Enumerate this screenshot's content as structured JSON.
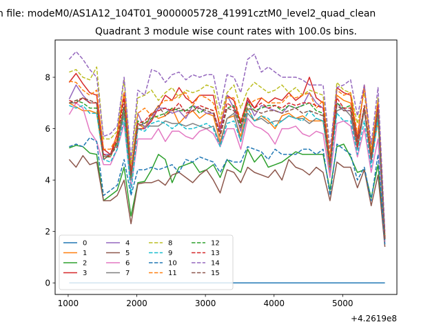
{
  "figure": {
    "suptitle": "n file: modeM0/AS1A12_104T01_9000005728_41991cztM0_level2_quad_clean",
    "title": "Quadrant 3 module wise count rates with 100.0s bins.",
    "offset_text": "+4.2619e8"
  },
  "chart_data": {
    "type": "line",
    "title": "Quadrant 3 module wise count rates with 100.0s bins.",
    "xlabel": "",
    "ylabel": "",
    "x_offset": "+4.2619e8",
    "xlim": [
      810,
      5790
    ],
    "ylim": [
      -0.45,
      9.45
    ],
    "xticks": [
      1000,
      2000,
      3000,
      4000,
      5000
    ],
    "yticks": [
      0,
      2,
      4,
      6,
      8
    ],
    "grid": false,
    "legend": {
      "placement": "lower-left",
      "columns": 4
    },
    "x": [
      1015,
      1115,
      1215,
      1315,
      1415,
      1515,
      1615,
      1715,
      1815,
      1915,
      2015,
      2115,
      2215,
      2315,
      2415,
      2515,
      2615,
      2715,
      2815,
      2915,
      3015,
      3115,
      3215,
      3315,
      3415,
      3515,
      3615,
      3715,
      3815,
      3915,
      4015,
      4115,
      4215,
      4315,
      4415,
      4515,
      4615,
      4715,
      4815,
      4915,
      5015,
      5115,
      5215,
      5315,
      5415,
      5515,
      5615
    ],
    "series": [
      {
        "name": "0",
        "color": "#1f77b4",
        "dash": "solid",
        "values": [
          0,
          0,
          0,
          0,
          0,
          0,
          0,
          0,
          0,
          0,
          0,
          0,
          0,
          0,
          0,
          0,
          0,
          0,
          0,
          0,
          0,
          0,
          0,
          0,
          0,
          0,
          0,
          0,
          0,
          0,
          0,
          0,
          0,
          0,
          0,
          0,
          0,
          0,
          0,
          0,
          0,
          0,
          0,
          0,
          0,
          0,
          0
        ]
      },
      {
        "name": "1",
        "color": "#ff7f0e",
        "dash": "solid",
        "values": [
          7.0,
          6.85,
          6.7,
          6.7,
          6.6,
          4.8,
          5.0,
          5.6,
          6.5,
          4.1,
          6.2,
          6.0,
          6.6,
          6.4,
          6.5,
          6.8,
          6.2,
          6.5,
          6.7,
          6.4,
          6.6,
          6.5,
          5.5,
          6.4,
          6.5,
          5.7,
          6.8,
          6.3,
          6.5,
          6.3,
          6.0,
          6.5,
          6.6,
          6.4,
          6.5,
          6.3,
          6.3,
          6.3,
          4.3,
          7.3,
          7.1,
          7.0,
          5.6,
          6.7,
          4.7,
          6.3,
          1.7
        ]
      },
      {
        "name": "2",
        "color": "#2ca02c",
        "dash": "solid",
        "values": [
          5.25,
          5.35,
          5.3,
          5.05,
          5.0,
          3.2,
          3.4,
          3.6,
          4.5,
          2.6,
          3.9,
          3.95,
          4.4,
          5.0,
          4.8,
          3.9,
          4.5,
          4.6,
          4.7,
          4.3,
          4.4,
          4.6,
          4.1,
          4.8,
          4.5,
          4.3,
          5.2,
          4.7,
          5.0,
          4.5,
          4.6,
          4.7,
          4.9,
          5.1,
          5.0,
          5.0,
          5.0,
          5.0,
          3.6,
          5.3,
          5.4,
          4.9,
          4.3,
          4.4,
          3.3,
          4.6,
          1.6
        ]
      },
      {
        "name": "3",
        "color": "#d62728",
        "dash": "solid",
        "values": [
          7.8,
          8.15,
          7.75,
          7.4,
          7.3,
          5.2,
          5.0,
          5.8,
          7.4,
          4.4,
          6.0,
          6.0,
          6.3,
          6.8,
          7.3,
          7.1,
          7.6,
          7.2,
          7.0,
          7.3,
          7.3,
          7.3,
          6.0,
          7.3,
          7.1,
          6.2,
          7.2,
          6.8,
          7.2,
          7.0,
          7.2,
          7.1,
          7.4,
          7.1,
          7.3,
          8.0,
          7.2,
          7.0,
          4.6,
          7.6,
          7.4,
          7.3,
          5.6,
          7.7,
          5.0,
          7.1,
          1.8
        ]
      },
      {
        "name": "4",
        "color": "#9467bd",
        "dash": "solid",
        "values": [
          7.15,
          7.7,
          7.3,
          7.0,
          7.0,
          5.0,
          5.0,
          5.4,
          6.8,
          4.2,
          6.6,
          6.0,
          6.4,
          6.8,
          6.8,
          6.6,
          6.7,
          6.4,
          6.9,
          6.8,
          6.6,
          6.6,
          5.9,
          7.3,
          6.8,
          5.9,
          7.1,
          6.5,
          6.9,
          6.8,
          6.7,
          6.6,
          6.9,
          6.8,
          6.9,
          7.4,
          7.0,
          6.8,
          4.5,
          7.0,
          6.7,
          6.7,
          5.2,
          6.8,
          4.7,
          6.8,
          1.7
        ]
      },
      {
        "name": "5",
        "color": "#8c564b",
        "dash": "solid",
        "values": [
          4.8,
          4.5,
          4.95,
          4.6,
          4.7,
          3.2,
          3.2,
          3.4,
          4.0,
          2.3,
          3.85,
          3.9,
          3.9,
          4.0,
          3.8,
          4.2,
          4.3,
          4.1,
          3.9,
          4.2,
          4.4,
          4.0,
          3.5,
          4.4,
          4.3,
          3.9,
          4.5,
          4.3,
          4.2,
          4.1,
          4.4,
          4.0,
          4.8,
          4.5,
          4.4,
          4.2,
          4.5,
          4.3,
          3.2,
          4.7,
          4.5,
          4.5,
          3.7,
          4.4,
          3.0,
          4.2,
          1.4
        ]
      },
      {
        "name": "6",
        "color": "#e377c2",
        "dash": "solid",
        "values": [
          6.55,
          7.0,
          6.8,
          5.9,
          5.5,
          4.6,
          4.6,
          5.2,
          6.2,
          3.7,
          5.6,
          5.6,
          5.6,
          6.0,
          5.5,
          5.9,
          5.9,
          5.7,
          5.6,
          5.9,
          6.0,
          5.8,
          5.3,
          6.0,
          6.0,
          5.2,
          6.4,
          6.1,
          6.0,
          5.8,
          5.4,
          6.0,
          6.0,
          6.1,
          5.8,
          5.7,
          5.9,
          5.8,
          4.1,
          6.2,
          6.3,
          6.1,
          4.9,
          6.0,
          4.3,
          5.6,
          1.6
        ]
      },
      {
        "name": "7",
        "color": "#7f7f7f",
        "dash": "solid",
        "values": [
          7.0,
          7.0,
          7.2,
          7.0,
          7.0,
          4.9,
          5.0,
          5.4,
          6.6,
          4.0,
          6.2,
          6.1,
          6.1,
          6.1,
          6.3,
          6.2,
          6.2,
          6.1,
          6.2,
          6.1,
          6.0,
          6.1,
          5.4,
          6.4,
          6.6,
          5.5,
          6.6,
          6.3,
          6.4,
          6.2,
          6.3,
          6.3,
          6.5,
          6.4,
          6.4,
          6.2,
          6.4,
          6.3,
          4.6,
          6.7,
          6.8,
          6.5,
          5.2,
          6.7,
          4.8,
          6.5,
          1.7
        ]
      },
      {
        "name": "8",
        "color": "#bcbd22",
        "dash": "dashed",
        "values": [
          8.2,
          8.3,
          8.0,
          7.9,
          8.4,
          5.6,
          5.6,
          5.9,
          7.9,
          4.6,
          7.2,
          7.3,
          7.5,
          7.1,
          7.4,
          7.6,
          7.2,
          7.5,
          7.4,
          7.5,
          7.7,
          7.6,
          6.4,
          7.4,
          7.7,
          6.8,
          7.5,
          7.8,
          7.6,
          7.4,
          7.5,
          7.7,
          7.4,
          7.6,
          7.3,
          7.5,
          7.4,
          7.3,
          4.9,
          7.8,
          7.5,
          7.4,
          6.2,
          7.4,
          5.2,
          7.2,
          1.8
        ]
      },
      {
        "name": "9",
        "color": "#17becf",
        "dash": "dashed",
        "values": [
          6.9,
          6.8,
          6.9,
          6.6,
          6.6,
          4.8,
          4.7,
          5.2,
          6.4,
          3.5,
          6.0,
          5.9,
          6.2,
          6.3,
          6.2,
          6.0,
          6.2,
          6.0,
          6.0,
          6.1,
          6.2,
          6.0,
          5.3,
          6.2,
          6.3,
          5.5,
          6.8,
          6.3,
          6.5,
          6.4,
          6.1,
          6.3,
          6.5,
          6.4,
          6.3,
          6.7,
          6.4,
          6.3,
          4.4,
          6.6,
          6.3,
          6.3,
          5.0,
          6.3,
          4.5,
          6.4,
          1.6
        ]
      },
      {
        "name": "10",
        "color": "#1f77b4",
        "dash": "dashed",
        "values": [
          5.3,
          5.4,
          5.3,
          5.65,
          5.5,
          3.4,
          3.6,
          3.8,
          4.8,
          3.4,
          4.4,
          4.4,
          4.5,
          4.4,
          4.5,
          4.6,
          4.3,
          4.8,
          4.7,
          4.9,
          4.8,
          4.7,
          4.3,
          4.8,
          4.7,
          4.7,
          5.3,
          5.2,
          5.1,
          4.8,
          5.2,
          5.0,
          5.0,
          5.0,
          5.2,
          5.2,
          5.0,
          5.2,
          3.4,
          5.4,
          5.2,
          5.0,
          4.0,
          4.5,
          3.2,
          5.0,
          1.5
        ]
      },
      {
        "name": "11",
        "color": "#ff7f0e",
        "dash": "dashed",
        "values": [
          7.85,
          7.8,
          7.5,
          7.3,
          7.5,
          5.2,
          5.2,
          5.7,
          7.4,
          4.3,
          6.6,
          6.8,
          6.5,
          6.9,
          7.1,
          7.1,
          7.3,
          7.4,
          6.9,
          7.3,
          7.2,
          7.0,
          6.2,
          7.2,
          7.2,
          6.3,
          6.9,
          7.1,
          7.2,
          7.0,
          7.0,
          7.0,
          7.3,
          7.2,
          7.3,
          7.4,
          6.8,
          7.1,
          4.8,
          7.5,
          7.3,
          7.4,
          5.8,
          7.6,
          5.1,
          7.0,
          1.8
        ]
      },
      {
        "name": "12",
        "color": "#2ca02c",
        "dash": "dashed",
        "values": [
          7.0,
          7.1,
          7.0,
          6.8,
          6.8,
          4.9,
          4.9,
          5.5,
          6.8,
          4.1,
          6.3,
          6.2,
          6.4,
          6.5,
          6.6,
          6.8,
          6.7,
          6.7,
          6.9,
          6.6,
          6.8,
          6.7,
          5.7,
          6.8,
          6.9,
          6.1,
          7.0,
          6.7,
          6.8,
          6.9,
          6.9,
          6.7,
          6.9,
          6.8,
          6.9,
          7.0,
          6.7,
          6.6,
          4.6,
          7.0,
          6.8,
          6.9,
          5.4,
          6.9,
          4.9,
          6.7,
          1.7
        ]
      },
      {
        "name": "13",
        "color": "#d62728",
        "dash": "dashed",
        "values": [
          7.1,
          7.0,
          7.2,
          7.0,
          7.0,
          5.0,
          4.9,
          5.6,
          7.2,
          4.2,
          6.2,
          6.3,
          6.6,
          6.7,
          6.8,
          6.7,
          7.0,
          6.6,
          6.7,
          6.9,
          6.8,
          6.7,
          5.8,
          7.0,
          6.8,
          6.3,
          7.1,
          6.8,
          7.0,
          6.8,
          6.9,
          6.8,
          7.0,
          6.9,
          7.0,
          7.0,
          6.9,
          6.8,
          4.7,
          7.2,
          6.8,
          6.8,
          5.3,
          6.9,
          4.8,
          6.9,
          1.7
        ]
      },
      {
        "name": "14",
        "color": "#9467bd",
        "dash": "dashed",
        "values": [
          8.7,
          9.0,
          8.7,
          8.3,
          8.0,
          5.7,
          5.8,
          6.1,
          8.0,
          4.8,
          7.5,
          7.3,
          8.3,
          8.2,
          7.8,
          8.1,
          8.2,
          7.9,
          8.1,
          8.0,
          8.1,
          8.1,
          6.8,
          8.1,
          8.0,
          7.4,
          8.7,
          8.9,
          8.2,
          8.4,
          8.2,
          8.0,
          8.0,
          8.0,
          7.9,
          7.7,
          7.7,
          7.7,
          5.2,
          7.6,
          7.7,
          7.9,
          6.5,
          7.7,
          5.4,
          7.6,
          2.0
        ]
      },
      {
        "name": "15",
        "color": "#8c564b",
        "dash": "dashed",
        "values": [
          7.0,
          7.1,
          7.2,
          7.1,
          7.0,
          4.8,
          5.0,
          5.3,
          7.0,
          4.2,
          6.1,
          6.2,
          6.5,
          6.9,
          6.5,
          6.7,
          6.8,
          6.7,
          6.7,
          6.8,
          6.7,
          6.6,
          5.7,
          6.8,
          6.7,
          6.0,
          6.8,
          6.7,
          6.6,
          6.7,
          6.7,
          6.6,
          6.7,
          6.8,
          6.6,
          6.7,
          6.6,
          6.5,
          4.5,
          6.9,
          6.7,
          6.7,
          5.5,
          6.8,
          4.8,
          6.7,
          1.7
        ]
      }
    ]
  }
}
